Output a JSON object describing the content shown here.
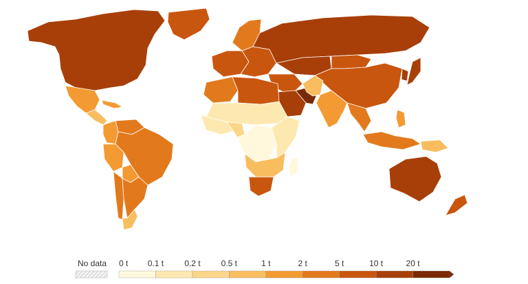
{
  "legend": {
    "no_data_label": "No data",
    "tick_labels": [
      "0 t",
      "0.1 t",
      "0.2 t",
      "0.5 t",
      "1 t",
      "2 t",
      "5 t",
      "10 t",
      "20 t"
    ],
    "bin_colors": [
      "#fff8dc",
      "#fde9b0",
      "#fbd58a",
      "#f8bd5f",
      "#f39a32",
      "#e27a1d",
      "#c9560e",
      "#a83f08",
      "#7a2a05"
    ]
  },
  "map": {
    "regions": [
      {
        "name": "north-america",
        "bin": 7
      },
      {
        "name": "greenland",
        "bin": 6
      },
      {
        "name": "mexico",
        "bin": 4
      },
      {
        "name": "central-america",
        "bin": 3
      },
      {
        "name": "caribbean",
        "bin": 4
      },
      {
        "name": "venezuela",
        "bin": 5
      },
      {
        "name": "colombia",
        "bin": 4
      },
      {
        "name": "brazil",
        "bin": 5
      },
      {
        "name": "peru",
        "bin": 4
      },
      {
        "name": "bolivia",
        "bin": 4
      },
      {
        "name": "argentina",
        "bin": 5
      },
      {
        "name": "chile",
        "bin": 5
      },
      {
        "name": "patagonia",
        "bin": 3
      },
      {
        "name": "scandinavia",
        "bin": 5
      },
      {
        "name": "western-europe",
        "bin": 6
      },
      {
        "name": "eastern-europe",
        "bin": 6
      },
      {
        "name": "russia",
        "bin": 7
      },
      {
        "name": "kazakhstan",
        "bin": 7
      },
      {
        "name": "china",
        "bin": 6
      },
      {
        "name": "mongolia",
        "bin": 6
      },
      {
        "name": "japan",
        "bin": 7
      },
      {
        "name": "south-korea",
        "bin": 7
      },
      {
        "name": "india",
        "bin": 4
      },
      {
        "name": "pakistan",
        "bin": 3
      },
      {
        "name": "middle-east",
        "bin": 6
      },
      {
        "name": "saudi-arabia",
        "bin": 7
      },
      {
        "name": "gulf-states",
        "bin": 8
      },
      {
        "name": "southeast-asia",
        "bin": 5
      },
      {
        "name": "indonesia",
        "bin": 5
      },
      {
        "name": "philippines",
        "bin": 4
      },
      {
        "name": "papua",
        "bin": 3
      },
      {
        "name": "north-africa",
        "bin": 5
      },
      {
        "name": "libya",
        "bin": 6
      },
      {
        "name": "sahel",
        "bin": 1
      },
      {
        "name": "west-africa",
        "bin": 1
      },
      {
        "name": "nigeria",
        "bin": 2
      },
      {
        "name": "central-africa",
        "bin": 0
      },
      {
        "name": "east-africa",
        "bin": 1
      },
      {
        "name": "southern-africa",
        "bin": 3
      },
      {
        "name": "south-africa",
        "bin": 6
      },
      {
        "name": "madagascar",
        "bin": 0
      },
      {
        "name": "australia",
        "bin": 7
      },
      {
        "name": "new-zealand",
        "bin": 6
      }
    ]
  }
}
